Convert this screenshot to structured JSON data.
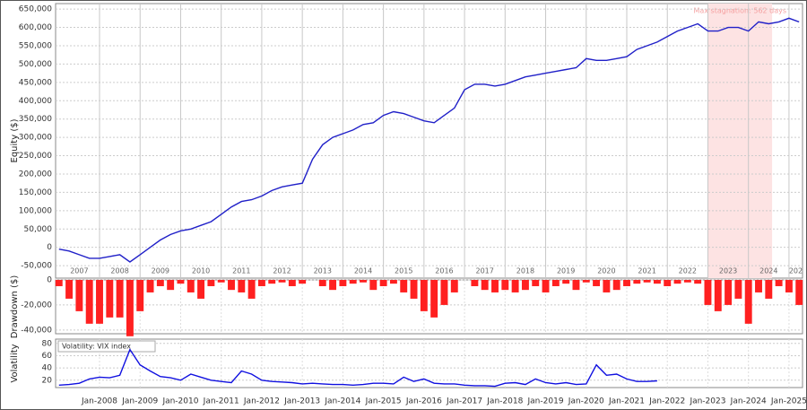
{
  "chart_data": [
    {
      "type": "line",
      "y_label": "Equity ($)",
      "color": "#2020c8",
      "x": [
        "2007-01",
        "2007-04",
        "2007-07",
        "2007-10",
        "2008-01",
        "2008-04",
        "2008-07",
        "2008-10",
        "2009-01",
        "2009-04",
        "2009-07",
        "2009-10",
        "2010-01",
        "2010-04",
        "2010-07",
        "2010-10",
        "2011-01",
        "2011-04",
        "2011-07",
        "2011-10",
        "2012-01",
        "2012-04",
        "2012-07",
        "2012-10",
        "2013-01",
        "2013-04",
        "2013-07",
        "2013-10",
        "2014-01",
        "2014-04",
        "2014-07",
        "2014-10",
        "2015-01",
        "2015-04",
        "2015-07",
        "2015-10",
        "2016-01",
        "2016-04",
        "2016-07",
        "2016-10",
        "2017-01",
        "2017-04",
        "2017-07",
        "2017-10",
        "2018-01",
        "2018-04",
        "2018-07",
        "2018-10",
        "2019-01",
        "2019-04",
        "2019-07",
        "2019-10",
        "2020-01",
        "2020-04",
        "2020-07",
        "2020-10",
        "2021-01",
        "2021-04",
        "2021-07",
        "2021-10",
        "2022-01",
        "2022-04",
        "2022-07",
        "2022-10",
        "2023-01",
        "2023-04",
        "2023-07",
        "2023-10",
        "2024-01",
        "2024-04",
        "2024-07",
        "2024-10",
        "2025-01",
        "2025-04"
      ],
      "values": [
        -5000,
        -10000,
        -20000,
        -30000,
        -30000,
        -25000,
        -20000,
        -40000,
        -20000,
        0,
        20000,
        35000,
        45000,
        50000,
        60000,
        70000,
        90000,
        110000,
        125000,
        130000,
        140000,
        155000,
        165000,
        170000,
        175000,
        240000,
        280000,
        300000,
        310000,
        320000,
        335000,
        340000,
        360000,
        370000,
        365000,
        355000,
        345000,
        340000,
        360000,
        380000,
        430000,
        445000,
        445000,
        440000,
        445000,
        455000,
        465000,
        470000,
        475000,
        480000,
        485000,
        490000,
        515000,
        510000,
        510000,
        515000,
        520000,
        540000,
        550000,
        560000,
        575000,
        590000,
        600000,
        610000,
        590000,
        590000,
        600000,
        600000,
        590000,
        615000,
        610000,
        615000,
        625000,
        615000
      ],
      "ylim": [
        -84000,
        665000
      ],
      "yticks": [
        {
          "value": -50000,
          "label": "-50,000"
        },
        0,
        {
          "value": 50000,
          "label": "50,000"
        },
        {
          "value": 100000,
          "label": "100,000"
        },
        {
          "value": 150000,
          "label": "150,000"
        },
        {
          "value": 200000,
          "label": "200,000"
        },
        {
          "value": 250000,
          "label": "250,000"
        },
        {
          "value": 300000,
          "label": "300,000"
        },
        {
          "value": 350000,
          "label": "350,000"
        },
        {
          "value": 400000,
          "label": "400,000"
        },
        {
          "value": 450000,
          "label": "450,000"
        },
        {
          "value": 500000,
          "label": "500,000"
        },
        {
          "value": 550000,
          "label": "550,000"
        },
        {
          "value": 600000,
          "label": "600,000"
        },
        {
          "value": 650000,
          "label": "650,000"
        }
      ],
      "xlim": [
        "2006-12",
        "2025-05"
      ],
      "xticks": [
        {
          "value": "2007-07",
          "label": "2007"
        },
        {
          "value": "2008-07",
          "label": "2008"
        },
        {
          "value": "2009-07",
          "label": "2009"
        },
        {
          "value": "2010-07",
          "label": "2010"
        },
        {
          "value": "2011-07",
          "label": "2011"
        },
        {
          "value": "2012-07",
          "label": "2012"
        },
        {
          "value": "2013-07",
          "label": "2013"
        },
        {
          "value": "2014-07",
          "label": "2014"
        },
        {
          "value": "2015-07",
          "label": "2015"
        },
        {
          "value": "2016-07",
          "label": "2016"
        },
        {
          "value": "2017-07",
          "label": "2017"
        },
        {
          "value": "2018-07",
          "label": "2018"
        },
        {
          "value": "2019-07",
          "label": "2019"
        },
        {
          "value": "2020-07",
          "label": "2020"
        },
        {
          "value": "2021-07",
          "label": "2021"
        },
        {
          "value": "2022-07",
          "label": "2022"
        },
        {
          "value": "2023-07",
          "label": "2023"
        },
        {
          "value": "2024-07",
          "label": "2024"
        },
        {
          "value": "2025-03",
          "label": "202"
        }
      ],
      "annotation": {
        "text": "Max stagnation: 562 days",
        "start": "2023-01",
        "end": "2024-08"
      },
      "grid": true
    },
    {
      "type": "bar",
      "y_label": "Drawdown ($)",
      "color": "#ff2020",
      "x": [
        "2007-01",
        "2007-04",
        "2007-07",
        "2007-10",
        "2008-01",
        "2008-04",
        "2008-07",
        "2008-10",
        "2009-01",
        "2009-04",
        "2009-07",
        "2009-10",
        "2010-01",
        "2010-04",
        "2010-07",
        "2010-10",
        "2011-01",
        "2011-04",
        "2011-07",
        "2011-10",
        "2012-01",
        "2012-04",
        "2012-07",
        "2012-10",
        "2013-01",
        "2013-04",
        "2013-07",
        "2013-10",
        "2014-01",
        "2014-04",
        "2014-07",
        "2014-10",
        "2015-01",
        "2015-04",
        "2015-07",
        "2015-10",
        "2016-01",
        "2016-04",
        "2016-07",
        "2016-10",
        "2017-01",
        "2017-04",
        "2017-07",
        "2017-10",
        "2018-01",
        "2018-04",
        "2018-07",
        "2018-10",
        "2019-01",
        "2019-04",
        "2019-07",
        "2019-10",
        "2020-01",
        "2020-04",
        "2020-07",
        "2020-10",
        "2021-01",
        "2021-04",
        "2021-07",
        "2021-10",
        "2022-01",
        "2022-04",
        "2022-07",
        "2022-10",
        "2023-01",
        "2023-04",
        "2023-07",
        "2023-10",
        "2024-01",
        "2024-04",
        "2024-07",
        "2024-10",
        "2025-01",
        "2025-04"
      ],
      "values": [
        -5000,
        -15000,
        -25000,
        -35000,
        -35000,
        -30000,
        -30000,
        -45000,
        -25000,
        -10000,
        -5000,
        -8000,
        -3000,
        -10000,
        -15000,
        -5000,
        -2000,
        -8000,
        -10000,
        -15000,
        -5000,
        -3000,
        -2000,
        -5000,
        -3000,
        0,
        -5000,
        -8000,
        -5000,
        -3000,
        -2000,
        -8000,
        -5000,
        -3000,
        -10000,
        -15000,
        -25000,
        -30000,
        -20000,
        -10000,
        0,
        -5000,
        -8000,
        -10000,
        -8000,
        -10000,
        -8000,
        -5000,
        -10000,
        -5000,
        -3000,
        -8000,
        -2000,
        -5000,
        -10000,
        -8000,
        -5000,
        -3000,
        -2000,
        -3000,
        -5000,
        -3000,
        -2000,
        -3000,
        -20000,
        -25000,
        -20000,
        -15000,
        -35000,
        -10000,
        -15000,
        -5000,
        -10000,
        -20000
      ],
      "ylim": [
        -43000,
        0
      ],
      "yticks": [
        {
          "value": -40000,
          "label": "-40,000"
        },
        {
          "value": -20000,
          "label": "-20,000"
        },
        0
      ],
      "xlim": [
        "2006-12",
        "2025-05"
      ],
      "grid": true
    },
    {
      "type": "line",
      "y_label": "Volatility",
      "legend": "Volatility: VIX index",
      "color": "#1010e0",
      "x": [
        "2007-01",
        "2007-04",
        "2007-07",
        "2007-10",
        "2008-01",
        "2008-04",
        "2008-07",
        "2008-10",
        "2009-01",
        "2009-04",
        "2009-07",
        "2009-10",
        "2010-01",
        "2010-04",
        "2010-07",
        "2010-10",
        "2011-01",
        "2011-04",
        "2011-07",
        "2011-10",
        "2012-01",
        "2012-04",
        "2012-07",
        "2012-10",
        "2013-01",
        "2013-04",
        "2013-07",
        "2013-10",
        "2014-01",
        "2014-04",
        "2014-07",
        "2014-10",
        "2015-01",
        "2015-04",
        "2015-07",
        "2015-10",
        "2016-01",
        "2016-04",
        "2016-07",
        "2016-10",
        "2017-01",
        "2017-04",
        "2017-07",
        "2017-10",
        "2018-01",
        "2018-04",
        "2018-07",
        "2018-10",
        "2019-01",
        "2019-04",
        "2019-07",
        "2019-10",
        "2020-01",
        "2020-04",
        "2020-07",
        "2020-10",
        "2021-01",
        "2021-04",
        "2021-07",
        "2021-10",
        "2022-01",
        "2022-04",
        "2022-07",
        "2022-10",
        "2023-01",
        "2023-04",
        "2023-07",
        "2023-10",
        "2024-01",
        "2024-04",
        "2024-07",
        "2024-10",
        "2025-01",
        "2025-04"
      ],
      "values": [
        12,
        13,
        15,
        22,
        25,
        24,
        28,
        70,
        45,
        35,
        26,
        24,
        20,
        30,
        25,
        20,
        18,
        16,
        35,
        30,
        20,
        18,
        17,
        16,
        14,
        15,
        14,
        13,
        13,
        12,
        13,
        15,
        15,
        14,
        25,
        18,
        22,
        15,
        14,
        14,
        12,
        11,
        11,
        10,
        15,
        16,
        13,
        22,
        16,
        14,
        16,
        13,
        14,
        45,
        28,
        30,
        22,
        18,
        18,
        19,
        null,
        null,
        null,
        null,
        null,
        null,
        null,
        null,
        null,
        null,
        null,
        null,
        null,
        null
      ],
      "ylim": [
        8,
        87
      ],
      "yticks": [
        20,
        40,
        60,
        80
      ],
      "xlim": [
        "2006-12",
        "2025-05"
      ],
      "xticks": [
        {
          "value": "2008-01",
          "label": "Jan-2008"
        },
        {
          "value": "2009-01",
          "label": "Jan-2009"
        },
        {
          "value": "2010-01",
          "label": "Jan-2010"
        },
        {
          "value": "2011-01",
          "label": "Jan-2011"
        },
        {
          "value": "2012-01",
          "label": "Jan-2012"
        },
        {
          "value": "2013-01",
          "label": "Jan-2013"
        },
        {
          "value": "2014-01",
          "label": "Jan-2014"
        },
        {
          "value": "2015-01",
          "label": "Jan-2015"
        },
        {
          "value": "2016-01",
          "label": "Jan-2016"
        },
        {
          "value": "2017-01",
          "label": "Jan-2017"
        },
        {
          "value": "2018-01",
          "label": "Jan-2018"
        },
        {
          "value": "2019-01",
          "label": "Jan-2019"
        },
        {
          "value": "2020-01",
          "label": "Jan-2020"
        },
        {
          "value": "2021-01",
          "label": "Jan-2021"
        },
        {
          "value": "2022-01",
          "label": "Jan-2022"
        },
        {
          "value": "2023-01",
          "label": "Jan-2023"
        },
        {
          "value": "2024-01",
          "label": "Jan-2024"
        },
        {
          "value": "2025-01",
          "label": "Jan-2025"
        }
      ],
      "grid": true
    }
  ]
}
